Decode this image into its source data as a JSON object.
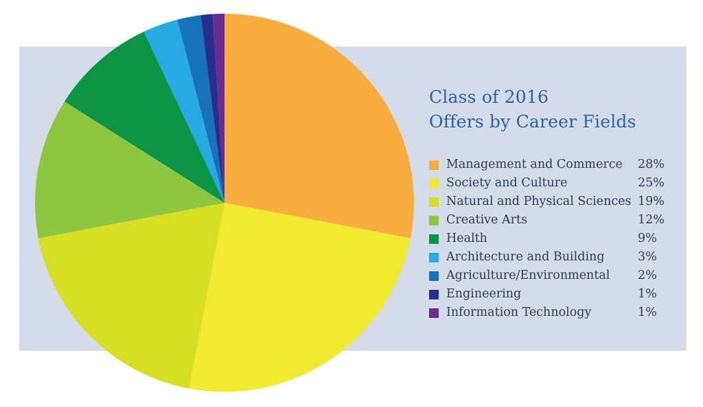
{
  "chart_data": {
    "type": "pie",
    "title": "Class of 2016",
    "subtitle": "Offers by Career Fields",
    "legend_position": "right",
    "slices": [
      {
        "label": "Management and Commerce",
        "value": 28,
        "display": "28%",
        "color": "#f9ad3e"
      },
      {
        "label": "Society and Culture",
        "value": 25,
        "display": "25%",
        "color": "#f2ea30"
      },
      {
        "label": "Natural and Physical Sciences",
        "value": 19,
        "display": "19%",
        "color": "#d6df23"
      },
      {
        "label": "Creative Arts",
        "value": 12,
        "display": "12%",
        "color": "#8dc63f"
      },
      {
        "label": "Health",
        "value": 9,
        "display": "9%",
        "color": "#0b9444"
      },
      {
        "label": "Architecture and Building",
        "value": 3,
        "display": "3%",
        "color": "#27aae1"
      },
      {
        "label": "Agriculture/Environmental",
        "value": 2,
        "display": "2%",
        "color": "#1672b9"
      },
      {
        "label": "Engineering",
        "value": 1,
        "display": "1%",
        "color": "#262f8f"
      },
      {
        "label": "Information Technology",
        "value": 1,
        "display": "1%",
        "color": "#6b2c91"
      }
    ]
  }
}
